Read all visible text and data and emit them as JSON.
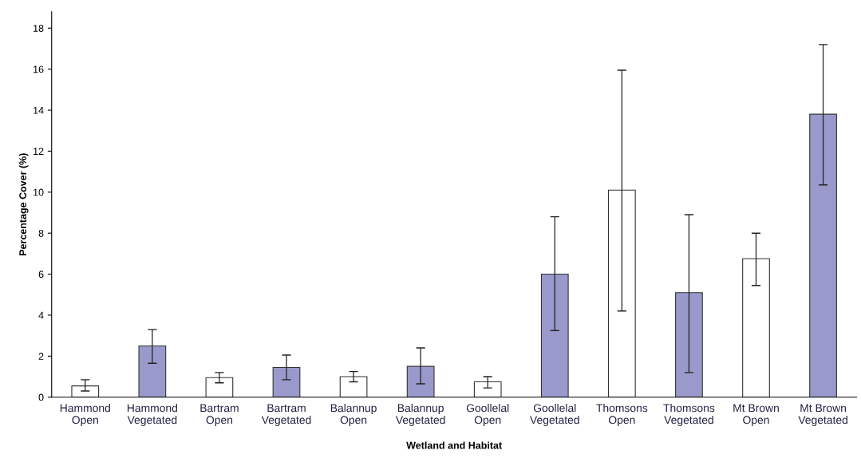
{
  "chart_data": {
    "type": "bar",
    "xlabel": "Wetland and Habitat",
    "ylabel": "Percentage Cover (%)",
    "categories": [
      "Hammond\nOpen",
      "Hammond\nVegetated",
      "Bartram\nOpen",
      "Bartram\nVegetated",
      "Balannup\nOpen",
      "Balannup\nVegetated",
      "Goollelal\nOpen",
      "Goollelal\nVegetated",
      "Thomsons\nOpen",
      "Thomsons\nVegetated",
      "Mt Brown\nOpen",
      "Mt Brown\nVegetated"
    ],
    "values": [
      0.55,
      2.5,
      0.95,
      1.45,
      1.0,
      1.5,
      0.75,
      6.0,
      10.1,
      5.1,
      6.75,
      13.8
    ],
    "errors": [
      [
        0.3,
        0.85
      ],
      [
        1.65,
        3.3
      ],
      [
        0.7,
        1.2
      ],
      [
        0.85,
        2.05
      ],
      [
        0.75,
        1.25
      ],
      [
        0.65,
        2.4
      ],
      [
        0.45,
        1.0
      ],
      [
        3.25,
        8.8
      ],
      [
        4.2,
        15.95
      ],
      [
        1.2,
        8.9
      ],
      [
        5.45,
        8.0
      ],
      [
        10.35,
        17.2
      ]
    ],
    "colors": [
      "#ffffff",
      "#9999cc",
      "#ffffff",
      "#9999cc",
      "#ffffff",
      "#9999cc",
      "#ffffff",
      "#9999cc",
      "#ffffff",
      "#9999cc",
      "#ffffff",
      "#9999cc"
    ],
    "ylim": [
      0,
      18.8
    ],
    "yticks": [
      0,
      2,
      4,
      6,
      8,
      10,
      12,
      14,
      16,
      18
    ],
    "grid": false,
    "legend": false
  }
}
